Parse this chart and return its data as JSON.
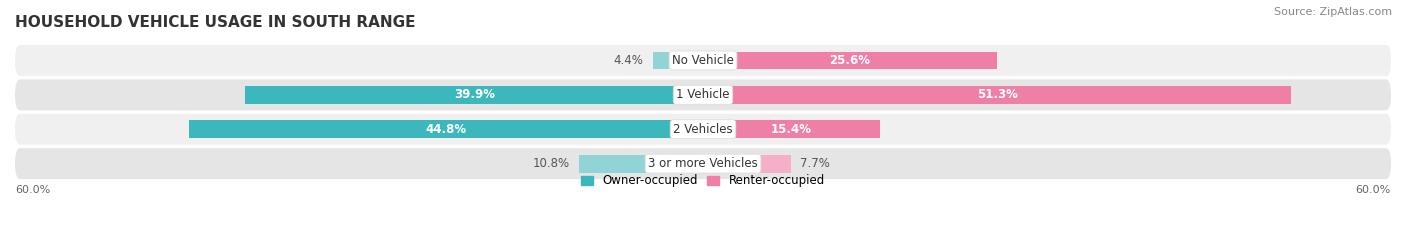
{
  "title": "HOUSEHOLD VEHICLE USAGE IN SOUTH RANGE",
  "source": "Source: ZipAtlas.com",
  "categories": [
    "No Vehicle",
    "1 Vehicle",
    "2 Vehicles",
    "3 or more Vehicles"
  ],
  "owner_values": [
    4.4,
    39.9,
    44.8,
    10.8
  ],
  "renter_values": [
    25.6,
    51.3,
    15.4,
    7.7
  ],
  "owner_color_dark": "#3cb8bc",
  "owner_color_light": "#90d4d6",
  "renter_color_dark": "#f07fa8",
  "renter_color_light": "#f5afc8",
  "row_bg_color_light": "#f0f0f0",
  "row_bg_color_dark": "#e5e5e5",
  "axis_max": 60.0,
  "axis_label_left": "60.0%",
  "axis_label_right": "60.0%",
  "legend_owner": "Owner-occupied",
  "legend_renter": "Renter-occupied",
  "title_fontsize": 11,
  "source_fontsize": 8,
  "label_fontsize": 8.5,
  "category_fontsize": 8.5,
  "dark_threshold": 15
}
